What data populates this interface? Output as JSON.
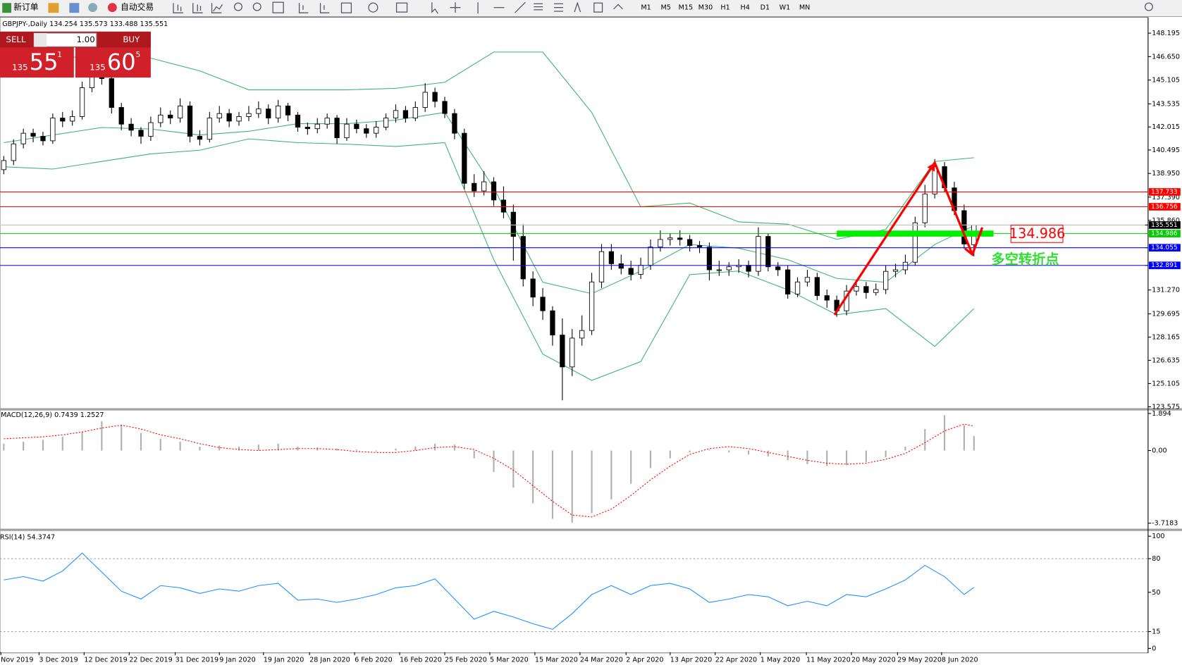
{
  "toolbar": {
    "new_order": "新订单",
    "auto_trading": "自动交易",
    "timeframes": [
      "M1",
      "M5",
      "M15",
      "M30",
      "H1",
      "H4",
      "D1",
      "W1",
      "MN"
    ]
  },
  "trade_panel": {
    "sell": "SELL",
    "buy": "BUY",
    "lots": "1.00",
    "bid": [
      "135",
      "55",
      "1"
    ],
    "ask": [
      "135",
      "60",
      "5"
    ]
  },
  "chart_data": [
    {
      "type": "candlestick",
      "title": "GBPJPY-,Daily  134.254 135.573 133.488 135.551",
      "open": [
        139.2,
        139.8,
        140.9,
        141.6,
        141.4,
        141.1,
        142.6,
        142.4,
        142.7,
        144.6,
        145.9,
        145.2,
        143.3,
        142.2,
        141.8,
        141.4,
        142.3,
        142.8,
        142.6,
        143.4,
        141.4,
        141.2,
        142.6,
        142.9,
        142.4,
        142.7,
        142.9,
        143.2,
        142.6,
        143.4,
        142.8,
        142.0,
        141.9,
        142.2,
        142.6,
        141.3,
        142.2,
        141.9,
        141.6,
        142.0,
        142.6,
        143.1,
        142.6,
        143.3,
        144.3,
        143.7,
        142.9,
        141.6,
        138.3,
        137.8,
        138.4,
        137.2,
        136.4,
        134.8,
        132.0,
        130.8,
        129.9,
        128.3,
        126.2,
        128.1,
        128.6,
        131.8,
        133.8,
        133.0,
        132.7,
        132.3,
        132.9,
        134.1,
        134.6,
        134.7,
        134.6,
        134.2,
        134.1,
        132.6,
        132.6,
        132.8,
        132.9,
        132.5,
        134.8,
        132.8,
        132.6,
        131.0,
        131.8,
        132.1,
        130.9,
        130.6,
        129.9,
        131.2,
        131.5,
        131.1,
        131.3,
        132.5,
        132.6,
        133.1,
        135.7,
        137.6,
        139.4,
        138.0,
        136.5,
        134.254
      ],
      "high": [
        140.1,
        141.2,
        141.9,
        141.9,
        141.7,
        142.9,
        143.0,
        143.1,
        145.0,
        147.9,
        146.3,
        145.5,
        143.6,
        142.6,
        142.0,
        142.7,
        143.3,
        143.1,
        143.9,
        143.7,
        141.8,
        143.0,
        143.4,
        143.2,
        143.0,
        143.4,
        143.7,
        143.5,
        143.8,
        143.6,
        143.0,
        142.3,
        142.6,
        142.9,
        142.8,
        142.6,
        142.5,
        142.2,
        142.4,
        142.9,
        143.5,
        143.4,
        143.7,
        144.9,
        144.6,
        144.0,
        143.2,
        141.9,
        138.9,
        139.1,
        138.7,
        138.1,
        136.9,
        135.6,
        132.5,
        131.4,
        130.2,
        129.4,
        128.7,
        129.6,
        132.4,
        134.3,
        134.3,
        133.6,
        133.2,
        133.4,
        134.6,
        135.2,
        135.0,
        135.2,
        134.9,
        134.5,
        134.4,
        133.2,
        133.1,
        133.3,
        133.2,
        135.4,
        135.0,
        133.1,
        132.9,
        132.1,
        132.6,
        132.4,
        131.3,
        130.9,
        131.6,
        131.9,
        131.8,
        131.7,
        132.9,
        133.0,
        133.6,
        136.1,
        138.2,
        139.9,
        139.7,
        138.4,
        136.9,
        135.573
      ],
      "low": [
        138.9,
        139.5,
        140.6,
        141.0,
        140.8,
        140.9,
        142.0,
        142.1,
        142.5,
        144.3,
        144.8,
        142.9,
        141.8,
        141.4,
        140.9,
        141.1,
        142.0,
        142.2,
        142.3,
        141.0,
        140.8,
        141.0,
        142.3,
        142.0,
        142.1,
        142.4,
        142.6,
        142.2,
        142.3,
        142.4,
        141.7,
        141.5,
        141.6,
        141.9,
        140.9,
        141.1,
        141.6,
        141.3,
        141.3,
        141.8,
        142.3,
        142.3,
        142.4,
        143.0,
        143.3,
        142.6,
        141.2,
        137.9,
        137.4,
        137.5,
        136.8,
        136.0,
        133.2,
        131.5,
        130.2,
        129.3,
        127.6,
        124.0,
        125.6,
        127.6,
        128.3,
        131.4,
        132.6,
        132.3,
        131.9,
        132.0,
        132.6,
        133.8,
        134.2,
        134.2,
        133.8,
        133.7,
        131.9,
        132.2,
        132.2,
        132.4,
        132.1,
        132.2,
        132.5,
        132.2,
        130.7,
        130.8,
        131.5,
        130.6,
        130.1,
        129.5,
        129.6,
        130.9,
        130.7,
        130.9,
        131.0,
        132.1,
        132.3,
        132.9,
        135.4,
        137.3,
        137.7,
        136.2,
        134.0,
        133.488
      ],
      "close": [
        139.8,
        140.9,
        141.6,
        141.4,
        141.1,
        142.6,
        142.4,
        142.7,
        144.6,
        145.9,
        145.2,
        143.3,
        142.2,
        141.8,
        141.4,
        142.3,
        142.8,
        142.6,
        143.4,
        141.4,
        141.2,
        142.6,
        142.9,
        142.4,
        142.7,
        142.9,
        143.2,
        142.6,
        143.4,
        142.8,
        142.0,
        141.9,
        142.2,
        142.6,
        141.3,
        142.2,
        141.9,
        141.6,
        142.0,
        142.6,
        143.1,
        142.6,
        143.3,
        144.3,
        143.7,
        142.9,
        141.6,
        138.3,
        137.8,
        138.4,
        137.2,
        136.4,
        134.8,
        132.0,
        130.8,
        129.9,
        128.3,
        126.2,
        128.1,
        128.6,
        131.8,
        133.8,
        133.0,
        132.7,
        132.3,
        132.9,
        134.1,
        134.6,
        134.7,
        134.6,
        134.2,
        134.1,
        132.6,
        132.6,
        132.8,
        132.9,
        132.5,
        134.8,
        132.8,
        132.6,
        131.0,
        131.8,
        132.1,
        130.9,
        130.6,
        129.9,
        131.2,
        131.5,
        131.1,
        131.3,
        132.5,
        132.6,
        133.1,
        135.7,
        137.6,
        139.4,
        138.0,
        136.5,
        134.3,
        135.551
      ],
      "bull_color": "#ffffff",
      "bear_color": "#000000",
      "xlim": [
        -0.385,
        116.77
      ],
      "ylim": [
        123.48,
        149.19
      ],
      "yticks": [
        {
          "value": 148.195,
          "label": "148.195"
        },
        {
          "value": 146.65,
          "label": "146.650"
        },
        {
          "value": 145.105,
          "label": "145.105"
        },
        {
          "value": 143.535,
          "label": "143.535"
        },
        {
          "value": 142.015,
          "label": "142.015"
        },
        {
          "value": 140.495,
          "label": "140.495"
        },
        {
          "value": 138.95,
          "label": "138.950"
        },
        {
          "value": 137.39,
          "label": "137.390"
        },
        {
          "value": 135.86,
          "label": "135.860"
        },
        {
          "value": 131.27,
          "label": "131.270"
        },
        {
          "value": 129.695,
          "label": "129.695"
        },
        {
          "value": 128.165,
          "label": "128.165"
        },
        {
          "value": 126.635,
          "label": "126.635"
        },
        {
          "value": 125.105,
          "label": "125.105"
        },
        {
          "value": 123.575,
          "label": "123.575"
        }
      ],
      "xticks": [
        {
          "value": -0.3,
          "label": "Nov 2019"
        },
        {
          "value": 3.6,
          "label": "3 Dec 2019"
        },
        {
          "value": 8.2,
          "label": "12 Dec 2019"
        },
        {
          "value": 12.8,
          "label": "22 Dec 2019"
        },
        {
          "value": 17.5,
          "label": "31 Dec 2019"
        },
        {
          "value": 22,
          "label": "9 Jan 2020"
        },
        {
          "value": 26.5,
          "label": "19 Jan 2020"
        },
        {
          "value": 31.2,
          "label": "28 Jan 2020"
        },
        {
          "value": 35.8,
          "label": "6 Feb 2020"
        },
        {
          "value": 40.4,
          "label": "16 Feb 2020"
        },
        {
          "value": 45,
          "label": "25 Feb 2020"
        },
        {
          "value": 49.6,
          "label": "5 Mar 2020"
        },
        {
          "value": 54.2,
          "label": "15 Mar 2020"
        },
        {
          "value": 58.8,
          "label": "24 Mar 2020"
        },
        {
          "value": 63.5,
          "label": "2 Apr 2020"
        },
        {
          "value": 68,
          "label": "13 Apr 2020"
        },
        {
          "value": 72.6,
          "label": "22 Apr 2020"
        },
        {
          "value": 77.2,
          "label": "1 May 2020"
        },
        {
          "value": 81.9,
          "label": "11 May 2020"
        },
        {
          "value": 86.5,
          "label": "20 May 2020"
        },
        {
          "value": 91.2,
          "label": "29 May 2020"
        },
        {
          "value": 95.7,
          "label": "8 Jun 2020"
        }
      ],
      "bands": {
        "color": "#3cb371",
        "x": [
          0,
          5,
          10,
          15,
          20,
          25,
          30,
          35,
          40,
          45,
          50,
          55,
          60,
          65,
          70,
          75,
          80,
          85,
          90,
          95,
          99
        ],
        "upper": [
          145.96,
          146.55,
          146.7,
          146.55,
          145.71,
          144.46,
          144.46,
          144.46,
          144.56,
          144.96,
          146.95,
          146.95,
          142.97,
          136.75,
          137.0,
          135.76,
          135.61,
          134.61,
          135.26,
          139.74,
          139.99
        ],
        "middle": [
          140.98,
          141.48,
          141.98,
          141.88,
          141.48,
          141.73,
          142.23,
          142.23,
          142.47,
          142.97,
          138.0,
          131.78,
          131.03,
          132.52,
          134.27,
          134.02,
          133.27,
          132.03,
          131.78,
          134.27,
          135.51
        ],
        "lower": [
          139.39,
          139.24,
          139.74,
          140.24,
          140.48,
          141.23,
          140.98,
          140.88,
          140.73,
          140.98,
          133.27,
          127.05,
          125.31,
          126.55,
          132.28,
          132.52,
          131.28,
          129.64,
          130.04,
          127.55,
          130.04
        ]
      },
      "levels": [
        {
          "value": 137.733,
          "color": "#ff0000"
        },
        {
          "value": 136.756,
          "color": "#ff0000"
        },
        {
          "value": 135.551,
          "color": "#000000"
        },
        {
          "value": 134.986,
          "color": "#00cc00"
        },
        {
          "value": 134.055,
          "color": "#0000ff"
        },
        {
          "value": 132.891,
          "color": "#0000ff"
        }
      ],
      "highlight": {
        "value": 134.986,
        "label": "134.986",
        "color": "#00ee00"
      },
      "note": "多空转折点"
    },
    {
      "type": "bar",
      "title": "MACD(12,26,9) 0.7439 1.2527",
      "color": "#b0b0b0",
      "signal_color": "#ff0000",
      "xlim": [
        -0.385,
        116.77
      ],
      "ylim": [
        -4.0,
        2.05
      ],
      "yticks": [
        1.894,
        {
          "value": 0,
          "label": "0.00"
        },
        -3.7183
      ],
      "x": [
        0,
        2,
        4,
        6,
        8,
        10,
        12,
        14,
        16,
        18,
        20,
        22,
        24,
        26,
        28,
        30,
        32,
        34,
        36,
        38,
        40,
        42,
        44,
        46,
        48,
        50,
        52,
        54,
        56,
        58,
        60,
        62,
        64,
        66,
        68,
        70,
        72,
        74,
        76,
        78,
        80,
        82,
        84,
        86,
        88,
        90,
        92,
        94,
        96,
        98,
        99
      ],
      "values": [
        0.35,
        0.45,
        0.55,
        0.7,
        0.95,
        1.5,
        1.3,
        0.9,
        0.6,
        0.45,
        0.2,
        0.25,
        0.2,
        0.3,
        0.35,
        0.2,
        0.15,
        0.1,
        0.05,
        -0.05,
        0.1,
        0.2,
        0.35,
        0.3,
        -0.4,
        -1.1,
        -1.9,
        -2.7,
        -3.5,
        -3.7,
        -3.2,
        -2.5,
        -1.7,
        -0.9,
        -0.4,
        -0.1,
        0.05,
        -0.1,
        -0.2,
        -0.3,
        -0.5,
        -0.7,
        -0.8,
        -0.75,
        -0.6,
        -0.35,
        0.2,
        1.1,
        1.8,
        1.3,
        0.7439
      ],
      "signal": [
        0.6,
        0.65,
        0.7,
        0.8,
        0.95,
        1.15,
        1.3,
        1.1,
        0.8,
        0.6,
        0.35,
        0.15,
        0.05,
        0.0,
        0.05,
        0.1,
        0.1,
        0.05,
        -0.05,
        -0.1,
        -0.1,
        0.0,
        0.15,
        0.2,
        0.05,
        -0.4,
        -1.0,
        -1.8,
        -2.6,
        -3.3,
        -3.4,
        -3.0,
        -2.3,
        -1.5,
        -0.8,
        -0.2,
        0.1,
        0.2,
        0.1,
        -0.1,
        -0.3,
        -0.5,
        -0.65,
        -0.7,
        -0.65,
        -0.45,
        -0.15,
        0.4,
        1.0,
        1.35,
        1.2527
      ]
    },
    {
      "type": "line",
      "title": "RSI(14) 54.3747",
      "color": "#1e90ff",
      "xlim": [
        -0.385,
        116.77
      ],
      "ylim": [
        -3.4,
        104.7
      ],
      "yticks": [
        100,
        80,
        50,
        15,
        0
      ],
      "levels": [
        80,
        15
      ],
      "x": [
        0,
        2,
        4,
        6,
        8,
        10,
        12,
        14,
        16,
        18,
        20,
        22,
        24,
        26,
        28,
        30,
        32,
        34,
        36,
        38,
        40,
        42,
        44,
        46,
        48,
        50,
        52,
        54,
        56,
        58,
        60,
        62,
        64,
        66,
        68,
        70,
        72,
        74,
        76,
        78,
        80,
        82,
        84,
        86,
        88,
        90,
        92,
        94,
        96,
        98,
        99
      ],
      "values": [
        61,
        64,
        60,
        69,
        85,
        68,
        51,
        44,
        56,
        54,
        49,
        53,
        51,
        56,
        58,
        43,
        44,
        41,
        44,
        48,
        54,
        56,
        62,
        44,
        26,
        33,
        28,
        22,
        17,
        31,
        48,
        56,
        48,
        56,
        58,
        53,
        41,
        44,
        48,
        46,
        38,
        42,
        38,
        48,
        46,
        53,
        61,
        74,
        64,
        48,
        54.3747
      ]
    }
  ]
}
